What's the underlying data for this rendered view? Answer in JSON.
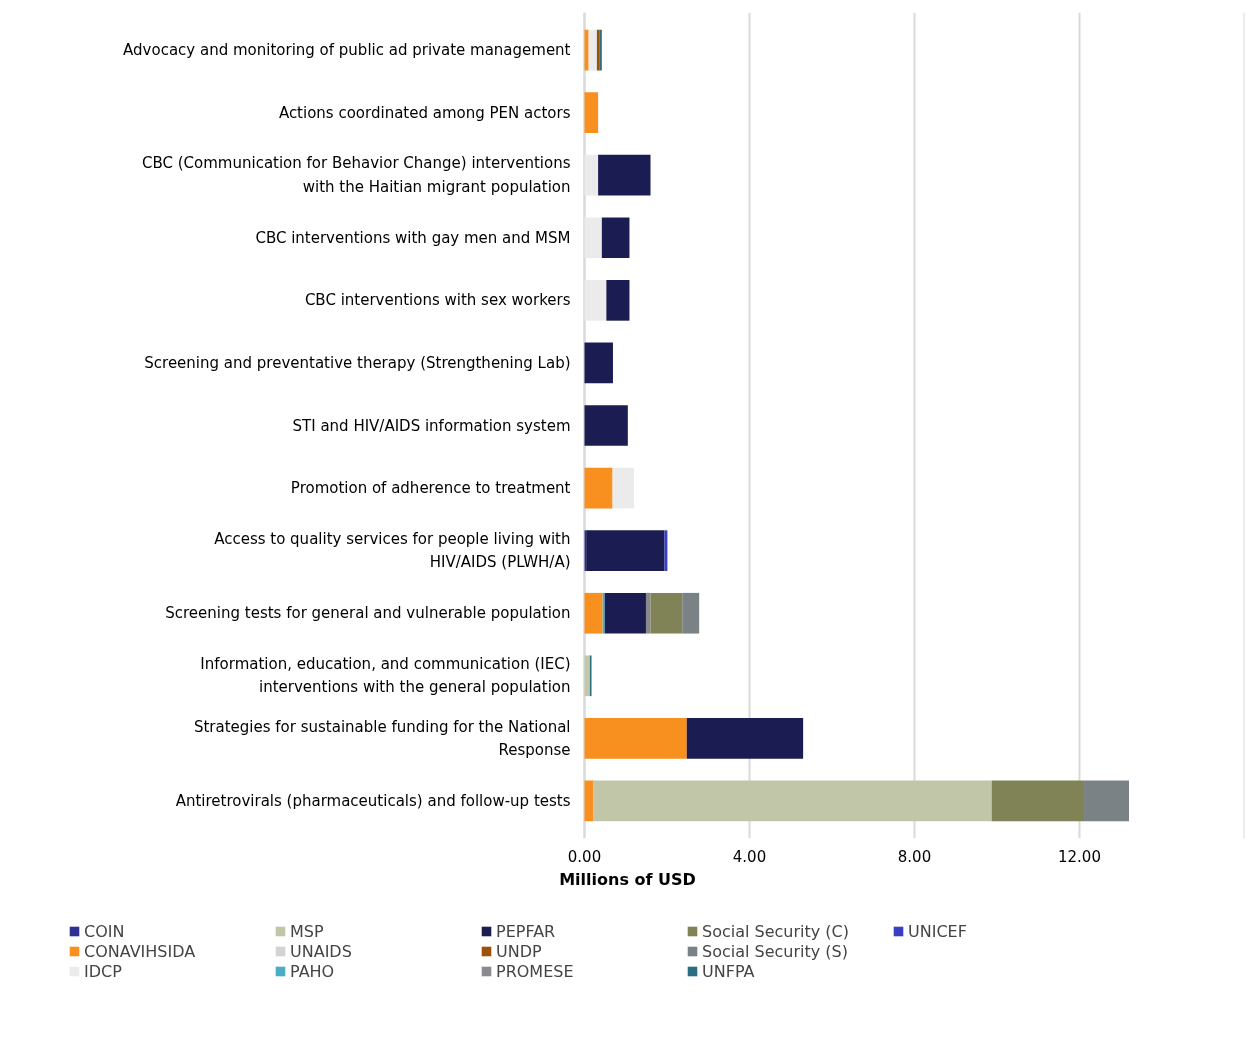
{
  "chart_data": {
    "type": "bar",
    "orientation": "horizontal",
    "stacked": true,
    "xlabel": "Millions of USD",
    "categories": [
      "Advocacy and monitoring of public ad private management",
      "Actions coordinated among PEN actors",
      "CBC (Communication for Behavior Change) interventions with the Haitian migrant population",
      "CBC interventions with gay men and MSM",
      "CBC interventions with sex workers",
      "Screening and preventative therapy (Strengthening Lab)",
      "STI and HIV/AIDS information system",
      "Promotion of adherence to treatment",
      "Access to quality services for people living with HIV/AIDS (PLWH/A)",
      "Screening tests for general and vulnerable population",
      "Information, education, and communication (IEC) interventions with the general population",
      "Strategies for sustainable funding for the National Response",
      "Antiretrovirals (pharmaceuticals) and follow-up tests"
    ],
    "series": [
      {
        "name": "COIN",
        "color": "#2e3192",
        "values": [
          null,
          null,
          null,
          null,
          null,
          null,
          null,
          null,
          0.04,
          null,
          null,
          null,
          null
        ]
      },
      {
        "name": "CONAVIHSIDA",
        "color": "#f7901e",
        "values": [
          0.1,
          0.33,
          null,
          null,
          null,
          null,
          null,
          0.68,
          null,
          0.44,
          null,
          2.48,
          0.22
        ]
      },
      {
        "name": "IDCP",
        "color": "#ebebeb",
        "values": [
          0.2,
          null,
          0.33,
          0.42,
          0.53,
          null,
          null,
          0.52,
          null,
          null,
          null,
          null,
          null
        ]
      },
      {
        "name": "MSP",
        "color": "#c2c6a9",
        "values": [
          null,
          null,
          null,
          null,
          null,
          null,
          null,
          null,
          null,
          null,
          0.13,
          null,
          9.65
        ]
      },
      {
        "name": "UNAIDS",
        "color": "#d3d3d3",
        "values": [
          null,
          null,
          null,
          null,
          null,
          null,
          null,
          null,
          null,
          null,
          null,
          null,
          null
        ]
      },
      {
        "name": "PAHO",
        "color": "#4bacc6",
        "values": [
          null,
          null,
          null,
          null,
          null,
          null,
          null,
          null,
          null,
          0.05,
          null,
          null,
          null
        ]
      },
      {
        "name": "PEPFAR",
        "color": "#1b1c52",
        "values": [
          null,
          null,
          1.27,
          0.67,
          0.56,
          0.69,
          1.05,
          null,
          1.9,
          1.0,
          null,
          2.82,
          null
        ]
      },
      {
        "name": "UNDP",
        "color": "#9c5008",
        "values": [
          0.07,
          null,
          null,
          null,
          null,
          null,
          null,
          null,
          null,
          null,
          null,
          null,
          null
        ]
      },
      {
        "name": "PROMESE",
        "color": "#8a8a8e",
        "values": [
          null,
          null,
          null,
          null,
          null,
          null,
          null,
          null,
          null,
          0.11,
          null,
          null,
          null
        ]
      },
      {
        "name": "Social Security (C)",
        "color": "#7f8356",
        "values": [
          null,
          null,
          null,
          null,
          null,
          null,
          null,
          null,
          null,
          0.77,
          null,
          null,
          2.24
        ]
      },
      {
        "name": "Social Security (S)",
        "color": "#7b8285",
        "values": [
          null,
          null,
          null,
          null,
          null,
          null,
          null,
          null,
          null,
          0.41,
          null,
          null,
          1.09
        ]
      },
      {
        "name": "UNFPA",
        "color": "#2a6f7f",
        "values": [
          0.05,
          null,
          null,
          null,
          null,
          null,
          null,
          null,
          null,
          null,
          0.04,
          null,
          null
        ]
      },
      {
        "name": "UNICEF",
        "color": "#3a3fc1",
        "values": [
          null,
          null,
          null,
          null,
          null,
          null,
          null,
          null,
          0.07,
          null,
          null,
          null,
          null
        ]
      }
    ],
    "xlim": [
      0,
      16
    ],
    "xticks": [
      {
        "value": 0,
        "label": "0.00"
      },
      {
        "value": 4,
        "label": "4.00"
      },
      {
        "value": 8,
        "label": "8.00"
      },
      {
        "value": 12,
        "label": "12.00"
      }
    ],
    "grid": "x",
    "legend": "bottom"
  }
}
